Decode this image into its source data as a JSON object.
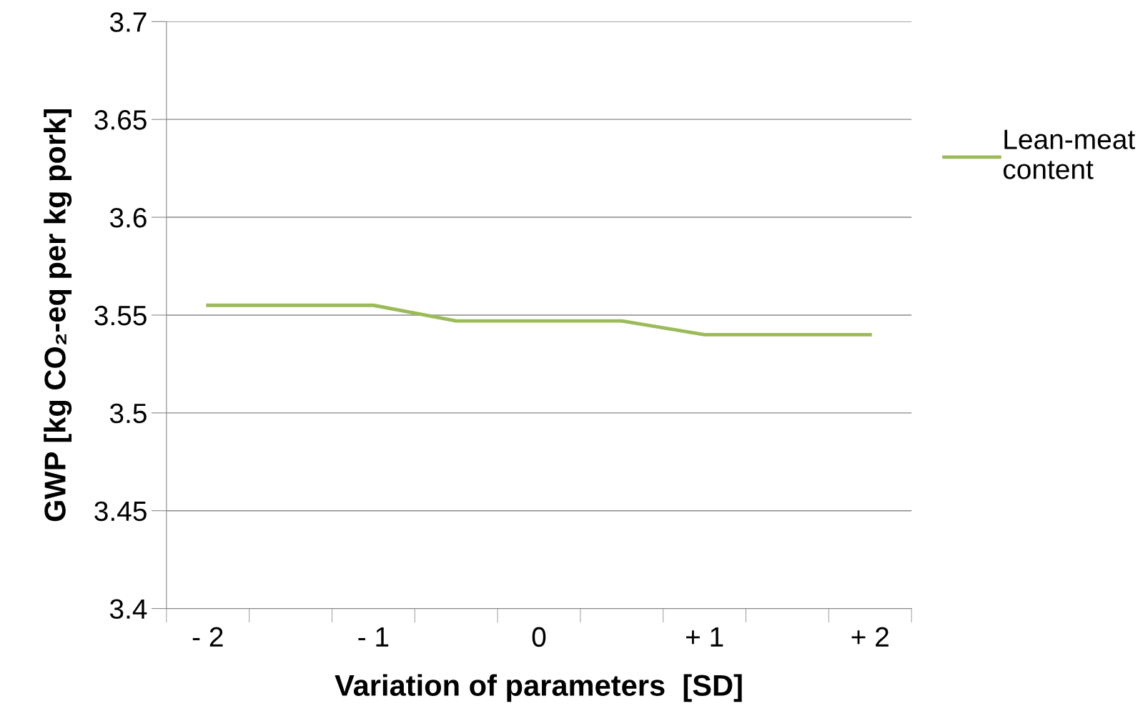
{
  "chart_data": {
    "type": "line",
    "xlabel": "Variation of parameters  [SD]",
    "ylabel": "GWP [kg CO₂-eq per kg pork]",
    "categories": [
      "- 2",
      null,
      "- 1",
      null,
      "0",
      null,
      "+ 1",
      null,
      "+ 2"
    ],
    "series": [
      {
        "name": "Lean-meat\ncontent",
        "color": "#9bbb59",
        "values": [
          3.555,
          3.555,
          3.555,
          3.547,
          3.547,
          3.547,
          3.54,
          3.54,
          3.54
        ]
      }
    ],
    "ylim": [
      3.4,
      3.7
    ],
    "yticks": [
      3.4,
      3.45,
      3.5,
      3.55,
      3.6,
      3.65,
      3.7
    ],
    "grid": "y",
    "legend": "right",
    "marker": "none",
    "line_style": "solid"
  }
}
